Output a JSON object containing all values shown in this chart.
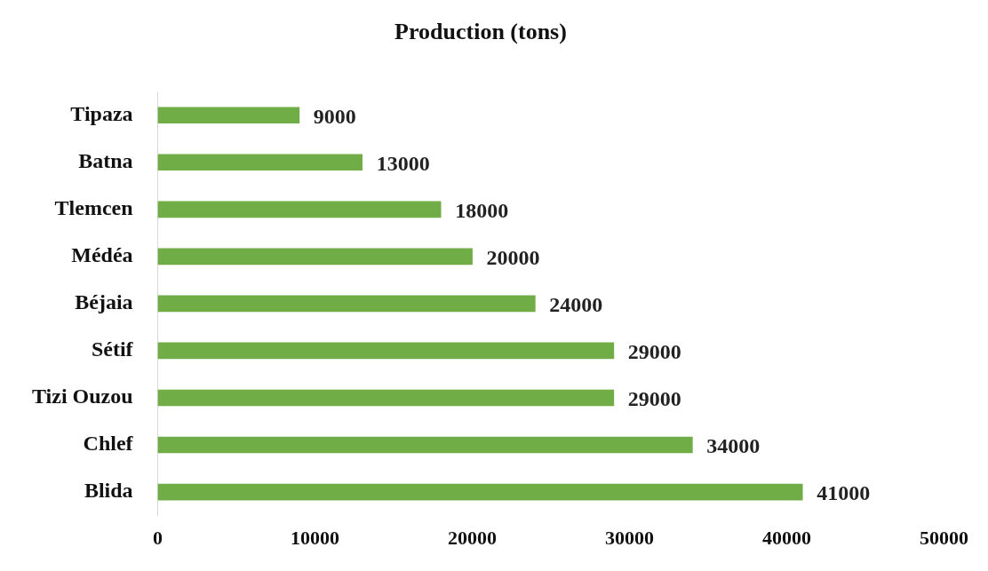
{
  "chart_data": {
    "type": "bar",
    "orientation": "horizontal",
    "title": "Production (tons)",
    "categories": [
      "Tipaza",
      "Batna",
      "Tlemcen",
      "Médéa",
      "Béjaia",
      "Sétif",
      "Tizi Ouzou",
      "Chlef",
      "Blida"
    ],
    "values": [
      9000,
      13000,
      18000,
      20000,
      24000,
      29000,
      29000,
      34000,
      41000
    ],
    "color": "#70ad47",
    "xlim": [
      0,
      50000
    ],
    "xticks": [
      0,
      10000,
      20000,
      30000,
      40000,
      50000
    ],
    "grid": false,
    "legend": false,
    "data_labels": true
  }
}
